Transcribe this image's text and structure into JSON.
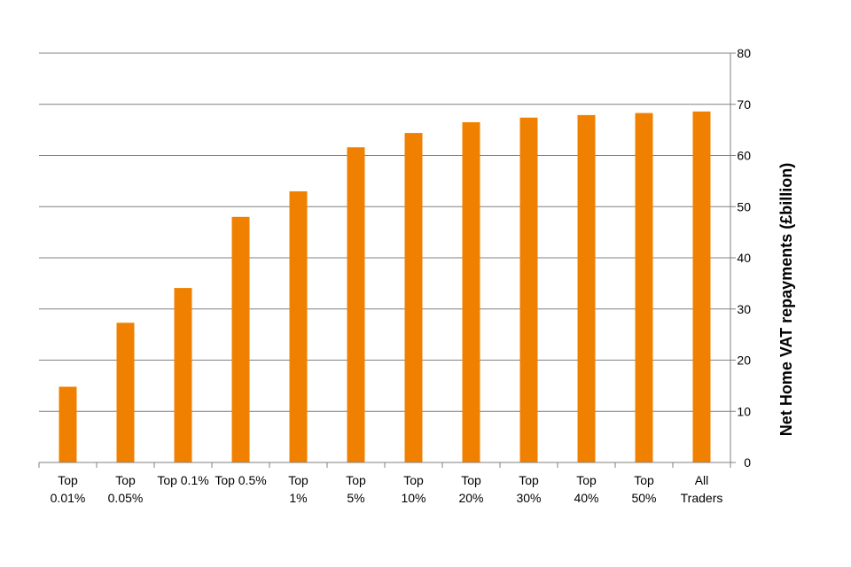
{
  "chart_data": {
    "type": "bar",
    "categories": [
      [
        "Top",
        "0.01%"
      ],
      [
        "Top",
        "0.05%"
      ],
      [
        "Top 0.1%"
      ],
      [
        "Top 0.5%"
      ],
      [
        "Top",
        "1%"
      ],
      [
        "Top",
        "5%"
      ],
      [
        "Top",
        "10%"
      ],
      [
        "Top",
        "20%"
      ],
      [
        "Top",
        "30%"
      ],
      [
        "Top",
        "40%"
      ],
      [
        "Top",
        "50%"
      ],
      [
        "All",
        "Traders"
      ]
    ],
    "values": [
      14.8,
      27.3,
      34.1,
      48.0,
      53.0,
      61.6,
      64.4,
      66.5,
      67.4,
      67.9,
      68.3,
      68.6
    ],
    "title": "",
    "xlabel": "",
    "ylabel": "Net Home VAT repayments (£billion)",
    "ylim": [
      0,
      80
    ],
    "yticks": [
      0,
      10,
      20,
      30,
      40,
      50,
      60,
      70,
      80
    ],
    "y_axis_side": "right",
    "grid": true,
    "legend": "none",
    "colors": {
      "bar": "#F08000",
      "grid": "#808080",
      "axis": "#808080"
    }
  }
}
